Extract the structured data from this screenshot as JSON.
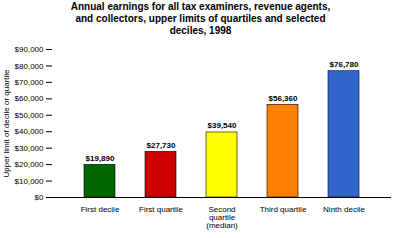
{
  "chart_data": {
    "type": "bar",
    "title": "Annual earnings for all tax examiners, revenue agents,\nand collectors, upper limits of quartiles and selected\ndeciles, 1998",
    "categories": [
      "First decile",
      "First quartile",
      "Second\nquartile\n(median)",
      "Third quartile",
      "Ninth decile"
    ],
    "values": [
      19890,
      27730,
      39540,
      56360,
      76780
    ],
    "value_labels": [
      "$19,890",
      "$27,730",
      "$39,540",
      "$56,360",
      "$76,780"
    ],
    "colors": [
      "#006600",
      "#cc0000",
      "#ffff00",
      "#ff8000",
      "#3366cc"
    ],
    "ylabel": "Upper limit of decile or quartile",
    "ylim": [
      0,
      90000
    ],
    "yticks": [
      {
        "value": 0,
        "label": "$0"
      },
      {
        "value": 10000,
        "label": "$10,000"
      },
      {
        "value": 20000,
        "label": "$20,000"
      },
      {
        "value": 30000,
        "label": "$30,000"
      },
      {
        "value": 40000,
        "label": "$40,000"
      },
      {
        "value": 50000,
        "label": "$50,000"
      },
      {
        "value": 60000,
        "label": "$60,000"
      },
      {
        "value": 70000,
        "label": "$70,000"
      },
      {
        "value": 80000,
        "label": "$80,000"
      },
      {
        "value": 90000,
        "label": "$90,000"
      }
    ],
    "data_labels": true,
    "grid": false
  }
}
